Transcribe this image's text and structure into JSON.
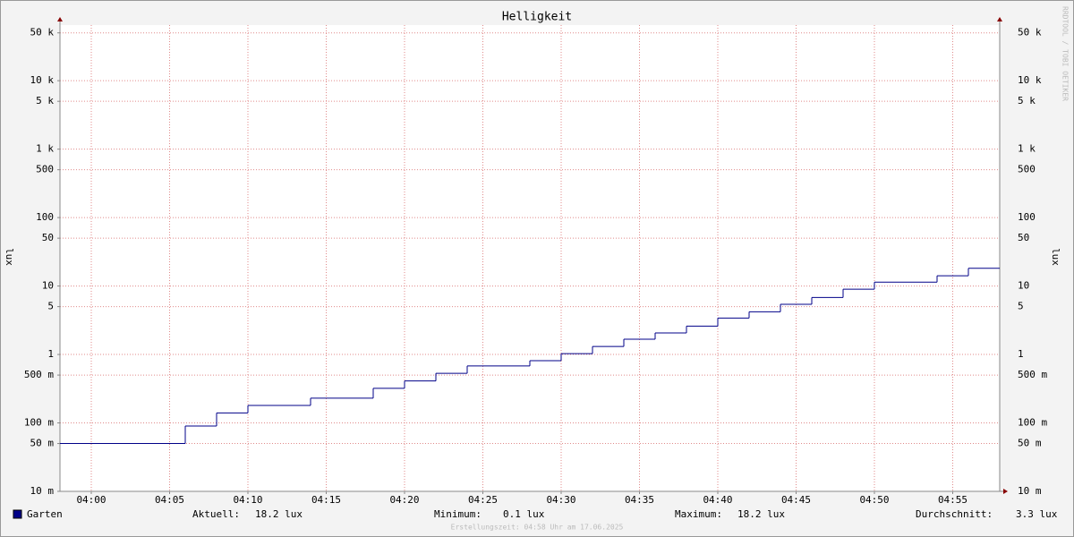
{
  "chart_data": {
    "type": "step",
    "title": "Helligkeit",
    "y_label": "lux",
    "log_scale": true,
    "grid": true,
    "x": [
      "03:58",
      "04:06",
      "04:08",
      "04:10",
      "04:14",
      "04:18",
      "04:20",
      "04:22",
      "04:24",
      "04:28",
      "04:30",
      "04:32",
      "04:34",
      "04:36",
      "04:38",
      "04:40",
      "04:42",
      "04:44",
      "04:46",
      "04:48",
      "04:50",
      "04:54",
      "04:56"
    ],
    "series": [
      {
        "name": "Garten",
        "color": "#000088",
        "values": [
          0.05,
          0.09,
          0.14,
          0.18,
          0.23,
          0.32,
          0.41,
          0.53,
          0.68,
          0.81,
          1.03,
          1.31,
          1.67,
          2.06,
          2.6,
          3.4,
          4.2,
          5.4,
          6.8,
          9.0,
          11.4,
          14.1,
          18.2
        ]
      }
    ],
    "xlim": [
      "03:58",
      "04:58"
    ],
    "xticks": [
      "04:00",
      "04:05",
      "04:10",
      "04:15",
      "04:20",
      "04:25",
      "04:30",
      "04:35",
      "04:40",
      "04:45",
      "04:50",
      "04:55"
    ],
    "ylim": [
      0.01,
      65000
    ],
    "yticks": [
      {
        "value": 0.01,
        "label": "10 m"
      },
      {
        "value": 0.05,
        "label": "50 m"
      },
      {
        "value": 0.1,
        "label": "100 m"
      },
      {
        "value": 0.5,
        "label": "500 m"
      },
      1,
      5,
      10,
      50,
      100,
      500,
      {
        "value": 1000,
        "label": "1 k"
      },
      {
        "value": 5000,
        "label": "5 k"
      },
      {
        "value": 10000,
        "label": "10 k"
      },
      {
        "value": 50000,
        "label": "50 k"
      }
    ],
    "stats": [
      {
        "label": "Aktuell:",
        "value": "18.2 lux"
      },
      {
        "label": "Minimum:",
        "value": "0.1 lux"
      },
      {
        "label": "Maximum:",
        "value": "18.2 lux"
      },
      {
        "label": "Durchschnitt:",
        "value": "3.3 lux"
      }
    ],
    "footer": "Erstellungszeit: 04:58 Uhr am 17.06.2025",
    "watermark": "RRDTOOL / TOBI OETIKER"
  }
}
